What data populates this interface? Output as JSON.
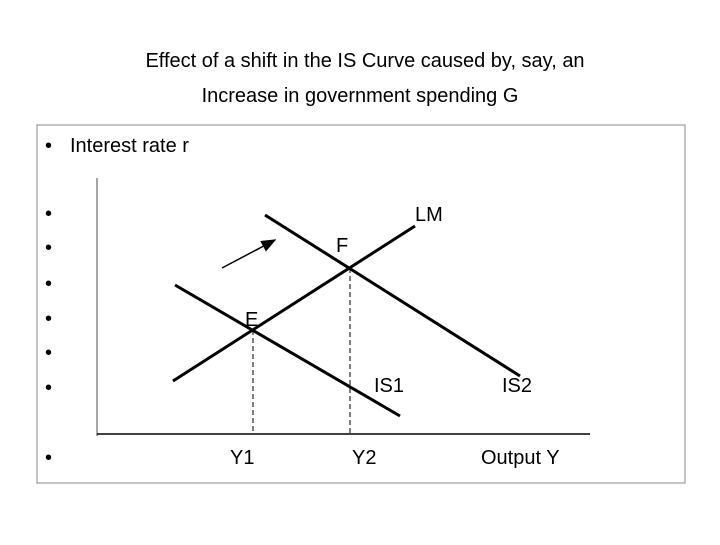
{
  "header": {
    "title_lines": [
      "Effect of a shift in the IS Curve caused by, say, an",
      "Increase in government spending G"
    ]
  },
  "bullets": {
    "first": "Interest rate r"
  },
  "diagram": {
    "labels": {
      "lm": "LM",
      "f": "F",
      "e": "E",
      "is1": "IS1",
      "is2": "IS2",
      "y1": "Y1",
      "y2": "Y2",
      "x_axis": "Output Y"
    }
  }
}
